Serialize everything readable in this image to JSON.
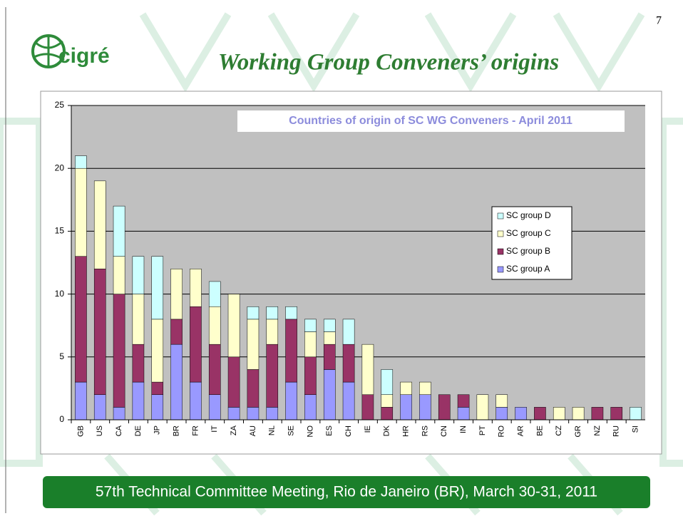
{
  "page_number": "7",
  "logo": "cigré",
  "header": {
    "title": "Working Group Conveners’ origins"
  },
  "footer": "57th Technical Committee Meeting, Rio de Janeiro (BR), March 30-31, 2011",
  "chart_data": {
    "type": "stacked-bar",
    "title": "Countries of origin of SC WG Conveners - April 2011",
    "categories": [
      "GB",
      "US",
      "CA",
      "DE",
      "JP",
      "BR",
      "FR",
      "IT",
      "ZA",
      "AU",
      "NL",
      "SE",
      "NO",
      "ES",
      "CH",
      "IE",
      "DK",
      "HR",
      "RS",
      "CN",
      "IN",
      "PT",
      "RO",
      "AR",
      "BE",
      "CZ",
      "GR",
      "NZ",
      "RU",
      "SI"
    ],
    "series": [
      {
        "name": "SC group A",
        "color": "#9999ff",
        "values": [
          3,
          2,
          1,
          3,
          2,
          6,
          3,
          2,
          1,
          1,
          1,
          3,
          2,
          4,
          3,
          0,
          0,
          2,
          2,
          0,
          1,
          0,
          1,
          1,
          0,
          0,
          0,
          0,
          0,
          0
        ]
      },
      {
        "name": "SC group B",
        "color": "#993366",
        "values": [
          10,
          10,
          9,
          3,
          1,
          2,
          6,
          4,
          4,
          3,
          5,
          5,
          3,
          2,
          3,
          2,
          1,
          0,
          0,
          2,
          1,
          0,
          0,
          0,
          1,
          0,
          0,
          1,
          1,
          0
        ]
      },
      {
        "name": "SC group C",
        "color": "#ffffcc",
        "values": [
          7,
          7,
          3,
          4,
          5,
          4,
          3,
          3,
          5,
          4,
          2,
          0,
          2,
          1,
          0,
          4,
          1,
          1,
          1,
          0,
          0,
          2,
          1,
          0,
          0,
          1,
          1,
          0,
          0,
          0
        ]
      },
      {
        "name": "SC group D",
        "color": "#ccffff",
        "values": [
          1,
          0,
          4,
          3,
          5,
          0,
          0,
          2,
          0,
          1,
          1,
          1,
          1,
          1,
          2,
          0,
          2,
          0,
          0,
          0,
          0,
          0,
          0,
          0,
          0,
          0,
          0,
          0,
          0,
          1
        ]
      }
    ],
    "ylim": [
      0,
      25
    ],
    "yticks": [
      0,
      5,
      10,
      15,
      20,
      25
    ],
    "grid": true,
    "legend": "right"
  }
}
